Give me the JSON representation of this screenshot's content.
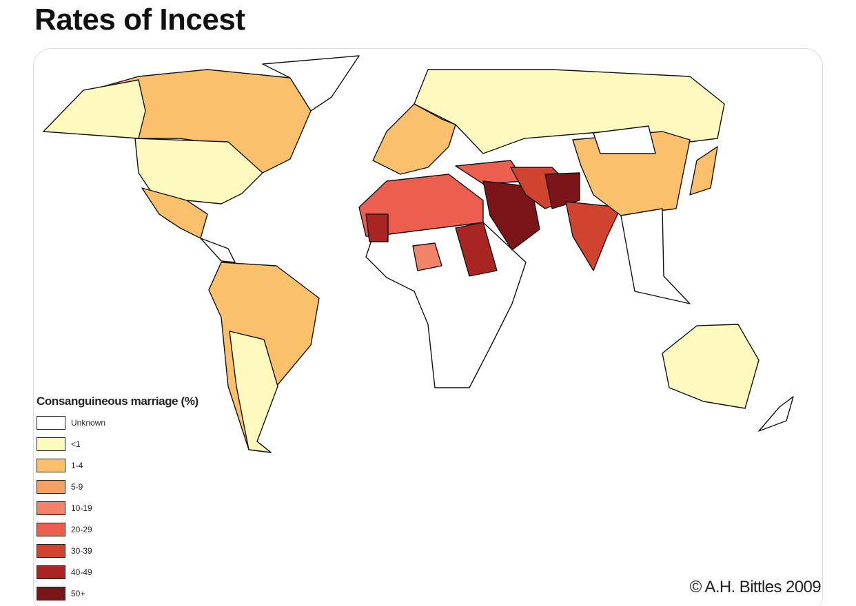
{
  "header": {
    "title": "Rates of Incest"
  },
  "legend": {
    "title": "Consanguineous marriage (%)",
    "items": [
      {
        "label": "Unknown",
        "color": "#ffffff"
      },
      {
        "label": "<1",
        "color": "#fdf9bf"
      },
      {
        "label": "1-4",
        "color": "#fbc06c"
      },
      {
        "label": "5-9",
        "color": "#f7a064"
      },
      {
        "label": "10-19",
        "color": "#f2836b"
      },
      {
        "label": "20-29",
        "color": "#ec5f4e"
      },
      {
        "label": "30-39",
        "color": "#d0432e"
      },
      {
        "label": "40-49",
        "color": "#a82521"
      },
      {
        "label": "50+",
        "color": "#7c1519"
      }
    ]
  },
  "credit": "© A.H. Bittles 2009"
}
